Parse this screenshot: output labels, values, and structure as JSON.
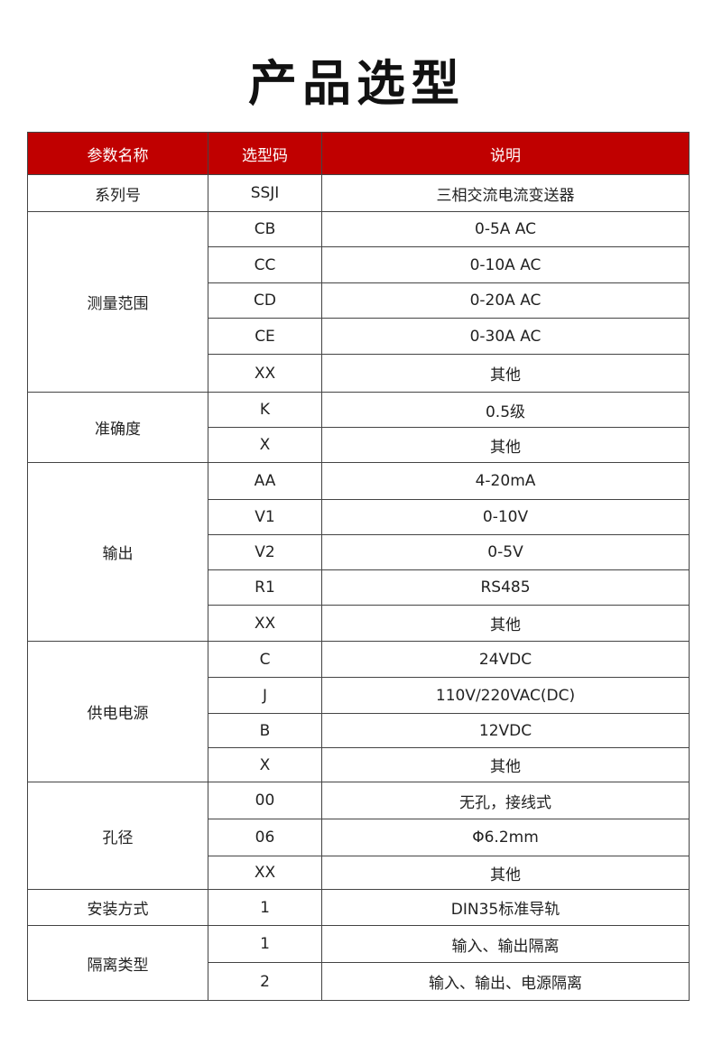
{
  "title": "产品选型",
  "header_color": "#c00000",
  "columns": [
    "参数名称",
    "选型码",
    "说明"
  ],
  "groups": [
    {
      "param": "系列号",
      "rows": [
        [
          "SSJI",
          "三相交流电流变送器"
        ]
      ]
    },
    {
      "param": "测量范围",
      "rows": [
        [
          "CB",
          "0-5A AC"
        ],
        [
          "CC",
          "0-10A AC"
        ],
        [
          "CD",
          "0-20A AC"
        ],
        [
          "CE",
          "0-30A AC"
        ],
        [
          "XX",
          "其他"
        ]
      ]
    },
    {
      "param": "准确度",
      "rows": [
        [
          "K",
          "0.5级"
        ],
        [
          "X",
          "其他"
        ]
      ]
    },
    {
      "param": "输出",
      "rows": [
        [
          "AA",
          "4-20mA"
        ],
        [
          "V1",
          "0-10V"
        ],
        [
          "V2",
          "0-5V"
        ],
        [
          "R1",
          "RS485"
        ],
        [
          "XX",
          "其他"
        ]
      ]
    },
    {
      "param": "供电电源",
      "rows": [
        [
          "C",
          "24VDC"
        ],
        [
          "J",
          "110V/220VAC(DC)"
        ],
        [
          "B",
          "12VDC"
        ],
        [
          "X",
          "其他"
        ]
      ]
    },
    {
      "param": "孔径",
      "rows": [
        [
          "00",
          "无孔，接线式"
        ],
        [
          "06",
          "Φ6.2mm"
        ],
        [
          "XX",
          "其他"
        ]
      ]
    },
    {
      "param": "安装方式",
      "rows": [
        [
          "1",
          "DIN35标准导轨"
        ]
      ]
    },
    {
      "param": "隔离类型",
      "rows": [
        [
          "1",
          "输入、输出隔离"
        ],
        [
          "2",
          "输入、输出、电源隔离"
        ]
      ]
    }
  ]
}
